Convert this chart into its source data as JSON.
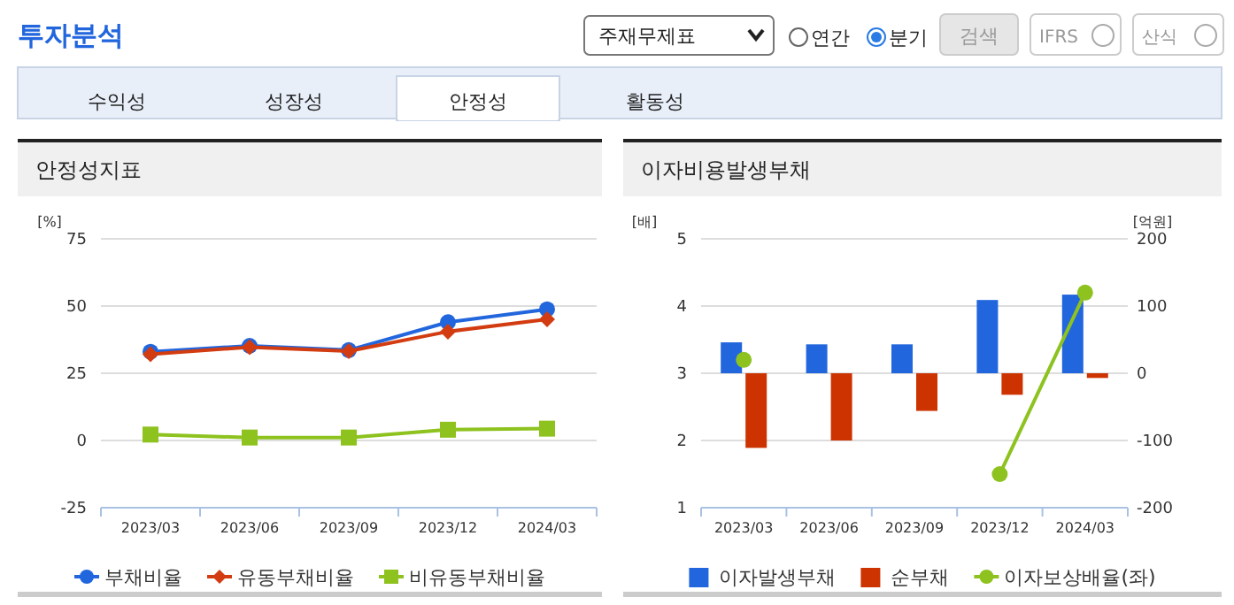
{
  "chart_data": [
    {
      "type": "other",
      "title": "투자분석",
      "annotations": [
        "주재무제표",
        "연간",
        "분기",
        "검색",
        "IFRS",
        "산식",
        "수익성",
        "성장성",
        "안정성",
        "활동성"
      ]
    },
    {
      "type": "line",
      "title": "안정성지표",
      "ylabel": "[%]",
      "categories": [
        "2023/03",
        "2023/06",
        "2023/09",
        "2023/12",
        "2024/03"
      ],
      "ylim": [
        -25,
        75
      ],
      "yticks": [
        -25,
        0,
        25,
        50,
        75
      ],
      "grid": "y",
      "legend": "bottom",
      "series": [
        {
          "name": "부채비율",
          "color": "#2266dd",
          "marker": "circle",
          "values": [
            33.0,
            35.2,
            33.6,
            44.0,
            48.8
          ]
        },
        {
          "name": "유동부채비율",
          "color": "#d23c10",
          "marker": "diamond",
          "values": [
            32.1,
            34.7,
            33.2,
            40.5,
            45.1
          ]
        },
        {
          "name": "비유동부채비율",
          "color": "#8dc21f",
          "marker": "square",
          "values": [
            2.2,
            1.1,
            1.1,
            4.0,
            4.4
          ]
        }
      ]
    },
    {
      "type": "bar",
      "title": "이자비용발생부채",
      "ylabel": "[배]",
      "y2label": "[억원]",
      "categories": [
        "2023/03",
        "2023/06",
        "2023/09",
        "2023/12",
        "2024/03"
      ],
      "ylim": [
        1,
        5
      ],
      "yticks": [
        1,
        2,
        3,
        4,
        5
      ],
      "y2lim": [
        -200,
        200
      ],
      "y2ticks": [
        -200,
        -100,
        0,
        100,
        200
      ],
      "grid": "y",
      "legend": "bottom",
      "series": [
        {
          "name": "이자발생부채",
          "color": "#2266dd",
          "axis": "y2",
          "values": [
            46,
            43,
            43,
            109,
            117
          ]
        },
        {
          "name": "순부채",
          "color": "#cc3300",
          "axis": "y2",
          "values": [
            -111,
            -100,
            -56,
            -32,
            -7
          ]
        },
        {
          "type": "line",
          "name": "이자보상배율(좌)",
          "color": "#8dc21f",
          "marker": "circle",
          "values": [
            3.2,
            null,
            null,
            1.5,
            4.2
          ]
        }
      ]
    }
  ]
}
